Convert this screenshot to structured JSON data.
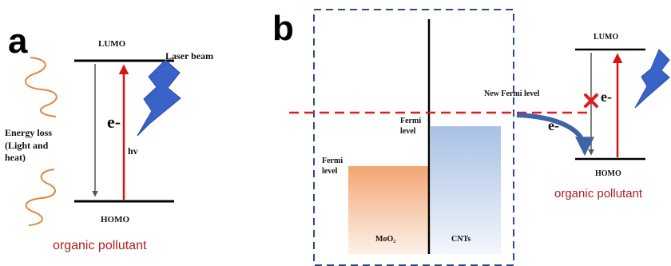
{
  "panel_a": {
    "letter": "a",
    "lumo": "LUMO",
    "homo": "HOMO",
    "electron": "e-",
    "hv": "hv",
    "laser": "Laser beam",
    "energy_loss": [
      "Energy loss",
      "(Light and",
      "heat)"
    ],
    "pollutant": "organic pollutant"
  },
  "panel_b": {
    "letter": "b",
    "fermi_moo2": [
      "Fermi",
      "level"
    ],
    "fermi_cnt": [
      "Fermi",
      "level"
    ],
    "new_fermi": "New Fermi level",
    "moo2_label": "MoO₂",
    "cnt_label": "CNTs",
    "electron_transfer": "e-",
    "electron_blocked": "e-",
    "lumo": "LUMO",
    "homo": "HOMO",
    "pollutant": "organic pollutant"
  },
  "colors": {
    "red_arrow": "#dd1111",
    "dashed_red": "#e01c1c",
    "dashed_blue": "#2d4a86",
    "moo2_gradient": [
      "#f2a673",
      "#fdf1e8"
    ],
    "cnt_gradient": [
      "#a9c0e4",
      "#f3f6fc"
    ],
    "lightning": "#3a63c9",
    "wave": "#e0893a",
    "transfer_arrow": "#3f64a6",
    "cross": "#e01c1c",
    "pollutant_text": "#b01e1e"
  }
}
